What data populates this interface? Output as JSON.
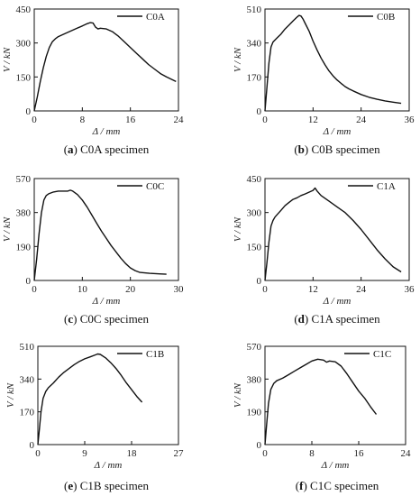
{
  "chart_data": [
    {
      "type": "line",
      "caption_letter": "a",
      "caption_text": " C0A specimen",
      "xlabel": "Δ / mm",
      "ylabel": "V / kN",
      "xlim": [
        0,
        24
      ],
      "ylim": [
        0,
        450
      ],
      "xticks": [
        0,
        8,
        16,
        24
      ],
      "yticks": [
        0,
        150,
        300,
        450
      ],
      "legend_position": "top-right",
      "series": [
        {
          "name": "C0A",
          "x": [
            0,
            0.5,
            1,
            1.5,
            2,
            2.5,
            3,
            3.5,
            4,
            5,
            6,
            7,
            8,
            8.8,
            9.3,
            9.8,
            10.2,
            10.6,
            11,
            12,
            13,
            14,
            15,
            16,
            17,
            18,
            19,
            20,
            21,
            22,
            23.6
          ],
          "y": [
            0,
            60,
            130,
            190,
            240,
            280,
            305,
            318,
            328,
            340,
            352,
            364,
            375,
            385,
            390,
            388,
            370,
            362,
            365,
            362,
            350,
            330,
            305,
            280,
            255,
            230,
            205,
            185,
            165,
            150,
            130
          ]
        }
      ]
    },
    {
      "type": "line",
      "caption_letter": "b",
      "caption_text": " C0B specimen",
      "xlabel": "Δ / mm",
      "ylabel": "V / kN",
      "xlim": [
        0,
        36
      ],
      "ylim": [
        0,
        510
      ],
      "xticks": [
        0,
        12,
        24,
        36
      ],
      "yticks": [
        0,
        170,
        340,
        510
      ],
      "legend_position": "top-right",
      "series": [
        {
          "name": "C0B",
          "x": [
            0,
            0.5,
            1,
            1.5,
            2,
            3,
            4,
            5,
            6,
            7,
            8,
            8.5,
            9,
            9.5,
            10,
            11,
            12,
            13,
            14,
            15,
            16,
            17,
            18,
            19,
            20,
            21,
            22,
            24,
            26,
            28,
            30,
            32,
            34
          ],
          "y": [
            0,
            120,
            240,
            320,
            345,
            365,
            385,
            410,
            430,
            450,
            470,
            478,
            475,
            460,
            440,
            400,
            350,
            305,
            265,
            230,
            200,
            175,
            155,
            138,
            122,
            110,
            100,
            82,
            68,
            58,
            50,
            44,
            38
          ]
        }
      ]
    },
    {
      "type": "line",
      "caption_letter": "c",
      "caption_text": " C0C specimen",
      "xlabel": "Δ / mm",
      "ylabel": "V / kN",
      "xlim": [
        0,
        30
      ],
      "ylim": [
        0,
        570
      ],
      "xticks": [
        0,
        10,
        20,
        30
      ],
      "yticks": [
        0,
        190,
        380,
        570
      ],
      "legend_position": "top-right",
      "series": [
        {
          "name": "C0C",
          "x": [
            0,
            0.5,
            1,
            1.5,
            2,
            2.5,
            3,
            4,
            5,
            6,
            7,
            7.5,
            8,
            9,
            10,
            11,
            12,
            13,
            14,
            15,
            16,
            17,
            18,
            19,
            20,
            21,
            22,
            24,
            26,
            27.5
          ],
          "y": [
            0,
            120,
            260,
            380,
            450,
            475,
            485,
            495,
            500,
            500,
            500,
            505,
            500,
            480,
            450,
            410,
            365,
            320,
            275,
            235,
            195,
            160,
            125,
            95,
            70,
            55,
            45,
            40,
            37,
            35
          ]
        }
      ]
    },
    {
      "type": "line",
      "caption_letter": "d",
      "caption_text": " C1A specimen",
      "xlabel": "Δ / mm",
      "ylabel": "V / kN",
      "xlim": [
        0,
        36
      ],
      "ylim": [
        0,
        450
      ],
      "xticks": [
        0,
        12,
        24,
        36
      ],
      "yticks": [
        0,
        150,
        300,
        450
      ],
      "legend_position": "top-right",
      "series": [
        {
          "name": "C1A",
          "x": [
            0,
            0.5,
            1,
            1.5,
            2,
            2.5,
            3,
            4,
            5,
            6,
            7,
            8,
            9,
            10,
            11,
            12,
            12.5,
            13,
            14,
            16,
            18,
            20,
            22,
            24,
            26,
            28,
            30,
            32,
            34
          ],
          "y": [
            0,
            80,
            170,
            240,
            265,
            280,
            290,
            310,
            330,
            345,
            358,
            365,
            375,
            382,
            390,
            398,
            408,
            395,
            375,
            350,
            325,
            300,
            265,
            225,
            180,
            135,
            95,
            60,
            38
          ]
        }
      ]
    },
    {
      "type": "line",
      "caption_letter": "e",
      "caption_text": " C1B specimen",
      "xlabel": "Δ / mm",
      "ylabel": "V / kN",
      "xlim": [
        0,
        27
      ],
      "ylim": [
        0,
        510
      ],
      "xticks": [
        0,
        9,
        18,
        27
      ],
      "yticks": [
        0,
        170,
        340,
        510
      ],
      "legend_position": "top-right",
      "series": [
        {
          "name": "C1B",
          "x": [
            0,
            0.3,
            0.6,
            1,
            1.5,
            2,
            3,
            4,
            5,
            6,
            7,
            8,
            9,
            10,
            11,
            11.5,
            12,
            13,
            14,
            15,
            16,
            17,
            18,
            19,
            20
          ],
          "y": [
            0,
            80,
            170,
            240,
            275,
            295,
            320,
            350,
            375,
            395,
            415,
            432,
            445,
            455,
            465,
            470,
            468,
            450,
            425,
            395,
            360,
            320,
            285,
            250,
            220
          ]
        }
      ]
    },
    {
      "type": "line",
      "caption_letter": "f",
      "caption_text": " C1C specimen",
      "xlabel": "Δ / mm",
      "ylabel": "V / kN",
      "xlim": [
        0,
        24
      ],
      "ylim": [
        0,
        570
      ],
      "xticks": [
        0,
        8,
        16,
        24
      ],
      "yticks": [
        0,
        190,
        380,
        570
      ],
      "legend_position": "top-right",
      "series": [
        {
          "name": "C1C",
          "x": [
            0,
            0.3,
            0.6,
            1,
            1.5,
            2,
            3,
            4,
            5,
            6,
            7,
            8,
            9,
            10,
            10.5,
            11,
            12,
            13,
            14,
            15,
            16,
            17,
            18,
            19
          ],
          "y": [
            0,
            120,
            240,
            320,
            355,
            370,
            385,
            405,
            425,
            445,
            465,
            485,
            495,
            490,
            478,
            485,
            480,
            455,
            410,
            360,
            310,
            270,
            220,
            175
          ]
        }
      ]
    }
  ]
}
